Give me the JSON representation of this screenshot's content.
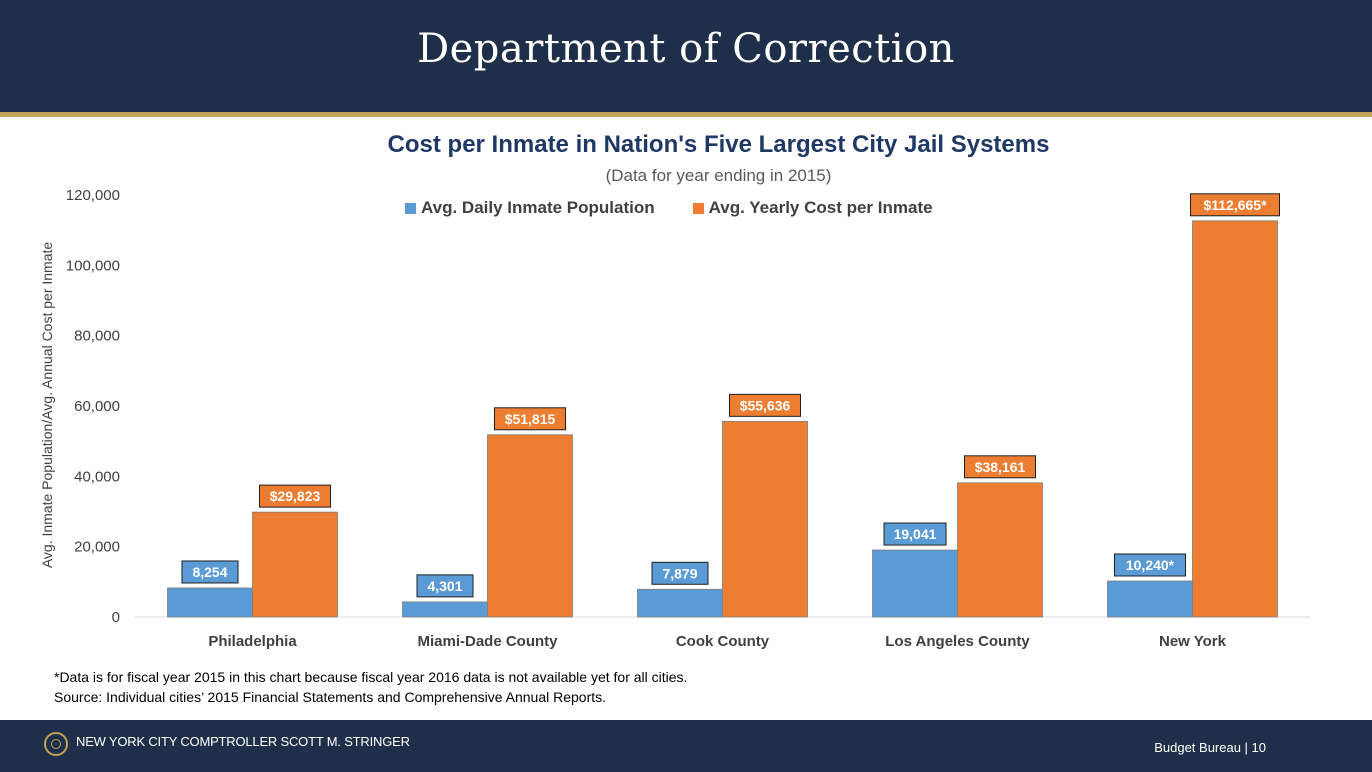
{
  "header": {
    "title": "Department of Correction"
  },
  "chart_data": {
    "type": "bar",
    "title": "Cost per Inmate in Nation's Five Largest City Jail Systems",
    "subtitle": "(Data for year ending in 2015)",
    "ylabel": "Avg. Inmate Population/Avg. Annual Cost per Inmate",
    "xlabel": "",
    "ylim": [
      0,
      120000
    ],
    "yticks": [
      0,
      20000,
      40000,
      60000,
      80000,
      100000,
      120000
    ],
    "ytick_labels": [
      "0",
      "20,000",
      "40,000",
      "60,000",
      "80,000",
      "100,000",
      "120,000"
    ],
    "categories": [
      "Philadelphia",
      "Miami-Dade County",
      "Cook County",
      "Los Angeles County",
      "New York"
    ],
    "series": [
      {
        "name": "Avg. Daily Inmate Population",
        "color": "#5b9bd5",
        "values": [
          8254,
          4301,
          7879,
          19041,
          10240
        ],
        "labels": [
          "8,254",
          "4,301",
          "7,879",
          "19,041",
          "10,240*"
        ]
      },
      {
        "name": "Avg. Yearly Cost per Inmate",
        "color": "#ed7d31",
        "values": [
          29823,
          51815,
          55636,
          38161,
          112665
        ],
        "labels": [
          "$29,823",
          "$51,815",
          "$55,636",
          "$38,161",
          "$112,665*"
        ]
      }
    ],
    "legend_position": "top",
    "grid": false
  },
  "notes": {
    "footnote": "*Data is for fiscal year 2015 in this chart because fiscal year 2016 data is not available yet for all cities.",
    "source": "Source: Individual cities’ 2015 Financial Statements and Comprehensive Annual Reports."
  },
  "footer": {
    "left": "NEW YORK CITY COMPTROLLER SCOTT M. STRINGER",
    "right": "Budget Bureau | 10",
    "seal_icon": "city-seal-icon"
  }
}
